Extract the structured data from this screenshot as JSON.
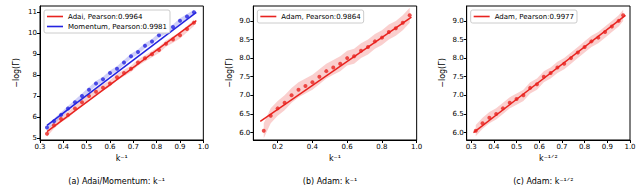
{
  "chart_data": [
    {
      "type": "scatter",
      "title": "(a) Adai/Momentum: k⁻¹",
      "x_label": "k⁻¹",
      "y_label": "−log(Γ)",
      "xlim": [
        0.3,
        1.0
      ],
      "ylim": [
        4.9,
        11.3
      ],
      "xticks": [
        0.3,
        0.4,
        0.5,
        0.6,
        0.7,
        0.8,
        0.9,
        {
          "value": 1,
          "label": "1.0"
        }
      ],
      "yticks": [
        5,
        6,
        7,
        8,
        9,
        10,
        11
      ],
      "grid": false,
      "legend": "upper left",
      "series": [
        {
          "name": "Adai, Pearson:0.9964",
          "color": "#e8231f",
          "x": [
            0.33,
            0.36,
            0.39,
            0.42,
            0.45,
            0.48,
            0.51,
            0.54,
            0.57,
            0.6,
            0.63,
            0.66,
            0.69,
            0.72,
            0.75,
            0.78,
            0.81,
            0.84,
            0.87,
            0.9,
            0.93,
            0.96
          ],
          "values": [
            5.2,
            5.6,
            5.9,
            6.1,
            6.4,
            6.7,
            7.0,
            7.2,
            7.4,
            7.6,
            7.9,
            8.1,
            8.3,
            8.6,
            8.8,
            9.0,
            9.2,
            9.5,
            9.7,
            9.9,
            10.2,
            10.5
          ],
          "err": [
            0.15,
            0.15,
            0.15,
            0.15,
            0.15,
            0.15,
            0.15,
            0.15,
            0.15,
            0.15,
            0.15,
            0.15,
            0.15,
            0.15,
            0.15,
            0.15,
            0.15,
            0.15,
            0.15,
            0.15,
            0.15,
            0.15
          ],
          "fit_x": [
            0.33,
            0.97
          ],
          "fit_values": [
            5.3,
            10.6
          ]
        },
        {
          "name": "Momentum, Pearson:0.9981",
          "color": "#2424e0",
          "x": [
            0.33,
            0.36,
            0.39,
            0.42,
            0.45,
            0.48,
            0.51,
            0.54,
            0.57,
            0.6,
            0.63,
            0.66,
            0.69,
            0.72,
            0.75,
            0.78,
            0.81,
            0.84,
            0.87,
            0.9,
            0.93,
            0.96
          ],
          "values": [
            5.5,
            5.8,
            6.1,
            6.4,
            6.7,
            7.0,
            7.3,
            7.6,
            7.8,
            8.1,
            8.3,
            8.6,
            8.9,
            9.1,
            9.4,
            9.6,
            9.9,
            10.1,
            10.3,
            10.6,
            10.8,
            11.0
          ],
          "err": [
            0.12,
            0.12,
            0.12,
            0.12,
            0.12,
            0.12,
            0.12,
            0.12,
            0.12,
            0.12,
            0.12,
            0.12,
            0.12,
            0.12,
            0.12,
            0.12,
            0.12,
            0.12,
            0.12,
            0.12,
            0.12,
            0.12
          ],
          "fit_x": [
            0.33,
            0.97
          ],
          "fit_values": [
            5.6,
            11.0
          ]
        }
      ]
    },
    {
      "type": "scatter",
      "title": "(b) Adam: k⁻¹",
      "x_label": "k⁻¹",
      "y_label": "−log(Γ)",
      "xlim": [
        0.06,
        1.0
      ],
      "ylim": [
        5.8,
        9.4
      ],
      "xticks": [
        0.2,
        0.4,
        0.6,
        0.8,
        {
          "value": 1,
          "label": "1.0"
        }
      ],
      "yticks": [
        {
          "value": 6,
          "label": "6.0"
        },
        6.5,
        {
          "value": 7,
          "label": "7.0"
        },
        7.5,
        {
          "value": 8,
          "label": "8.0"
        },
        8.5,
        {
          "value": 9,
          "label": "9.0"
        }
      ],
      "grid": false,
      "legend": "upper left",
      "series": [
        {
          "name": "Adam, Pearson:0.9864",
          "color": "#e8231f",
          "x": [
            0.12,
            0.16,
            0.2,
            0.24,
            0.28,
            0.32,
            0.36,
            0.4,
            0.44,
            0.48,
            0.52,
            0.56,
            0.6,
            0.64,
            0.68,
            0.72,
            0.76,
            0.8,
            0.84,
            0.88,
            0.92,
            0.96
          ],
          "values": [
            6.05,
            6.45,
            6.65,
            6.8,
            7.0,
            7.15,
            7.25,
            7.35,
            7.5,
            7.65,
            7.75,
            7.85,
            8.0,
            8.05,
            8.2,
            8.3,
            8.45,
            8.55,
            8.7,
            8.8,
            8.95,
            9.15
          ],
          "err": [
            0.2,
            0.2,
            0.2,
            0.2,
            0.2,
            0.2,
            0.2,
            0.2,
            0.2,
            0.2,
            0.2,
            0.2,
            0.2,
            0.2,
            0.2,
            0.2,
            0.2,
            0.2,
            0.2,
            0.2,
            0.2,
            0.2
          ],
          "fit_x": [
            0.1,
            0.97
          ],
          "fit_values": [
            6.3,
            9.1
          ]
        }
      ]
    },
    {
      "type": "scatter",
      "title": "(c) Adam: k⁻¹ᐟ²",
      "x_label": "k⁻¹ᐟ²",
      "y_label": "−log(Γ)",
      "xlim": [
        0.28,
        1.0
      ],
      "ylim": [
        5.8,
        9.4
      ],
      "xticks": [
        0.3,
        0.4,
        0.5,
        0.6,
        0.7,
        0.8,
        0.9,
        {
          "value": 1,
          "label": "1.0"
        }
      ],
      "yticks": [
        {
          "value": 6,
          "label": "6.0"
        },
        6.5,
        {
          "value": 7,
          "label": "7.0"
        },
        7.5,
        {
          "value": 8,
          "label": "8.0"
        },
        8.5,
        {
          "value": 9,
          "label": "9.0"
        }
      ],
      "grid": false,
      "legend": "upper left",
      "series": [
        {
          "name": "Adam, Pearson:0.9977",
          "color": "#e8231f",
          "x": [
            0.32,
            0.35,
            0.38,
            0.41,
            0.44,
            0.47,
            0.5,
            0.53,
            0.56,
            0.59,
            0.62,
            0.65,
            0.68,
            0.71,
            0.74,
            0.77,
            0.8,
            0.83,
            0.86,
            0.89,
            0.92,
            0.95,
            0.97
          ],
          "values": [
            6.05,
            6.25,
            6.4,
            6.5,
            6.65,
            6.8,
            6.9,
            7.0,
            7.2,
            7.3,
            7.5,
            7.6,
            7.75,
            7.85,
            8.0,
            8.15,
            8.3,
            8.45,
            8.55,
            8.7,
            8.85,
            9.0,
            9.15
          ],
          "err": [
            0.15,
            0.15,
            0.15,
            0.15,
            0.15,
            0.15,
            0.15,
            0.15,
            0.15,
            0.15,
            0.15,
            0.15,
            0.15,
            0.15,
            0.15,
            0.15,
            0.15,
            0.15,
            0.15,
            0.15,
            0.15,
            0.15,
            0.15
          ],
          "fit_x": [
            0.31,
            0.98
          ],
          "fit_values": [
            6.0,
            9.15
          ]
        }
      ]
    }
  ]
}
